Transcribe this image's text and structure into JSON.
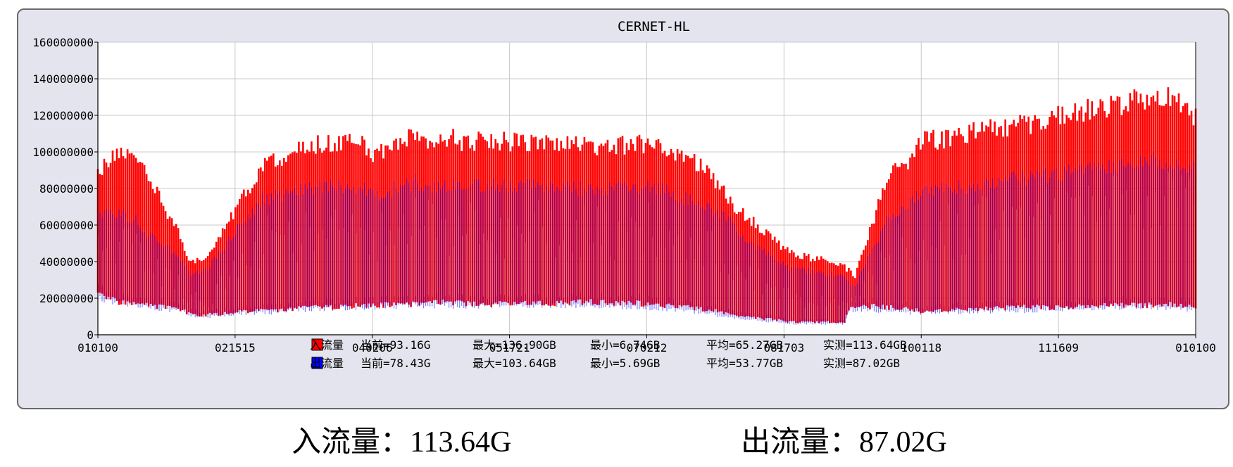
{
  "captions": {
    "in_text": "入流量：113.64G",
    "out_text": "出流量：87.02G"
  },
  "legend": [
    {
      "name": "入流量",
      "color": "#ff0000",
      "current": "当前=93.16G",
      "max": "最大=136.90GB",
      "min": "最小=6.74GB",
      "avg": "平均=65.27GB",
      "measured": "实测=113.64GB"
    },
    {
      "name": "出流量",
      "color": "#0000ff",
      "current": "当前=78.43G",
      "max": "最大=103.64GB",
      "min": "最小=5.69GB",
      "avg": "平均=53.77GB",
      "measured": "实测=87.02GB"
    }
  ],
  "chart_data": {
    "type": "area",
    "title": "CERNET-HL",
    "xlabel": "",
    "ylabel": "",
    "ylim": [
      0,
      160000000
    ],
    "y_ticks": [
      0,
      20000000,
      40000000,
      60000000,
      80000000,
      100000000,
      120000000,
      140000000,
      160000000
    ],
    "y_tick_labels": [
      "0",
      "20000000",
      "40000000",
      "60000000",
      "80000000",
      "100000000",
      "120000000",
      "140000000",
      "160000000"
    ],
    "x_tick_labels": [
      "010100",
      "021515",
      "040206",
      "051721",
      "070212",
      "081703",
      "100118",
      "111609",
      "010100"
    ],
    "grid": true,
    "series": [
      {
        "name": "入流量",
        "color": "#ff0000",
        "envelope_x": [
          0,
          0.02,
          0.035,
          0.045,
          0.06,
          0.075,
          0.085,
          0.1,
          0.12,
          0.15,
          0.2,
          0.24,
          0.25,
          0.29,
          0.3,
          0.32,
          0.33,
          0.35,
          0.4,
          0.45,
          0.5,
          0.52,
          0.55,
          0.57,
          0.58,
          0.6,
          0.62,
          0.63,
          0.66,
          0.68,
          0.685,
          0.69,
          0.72,
          0.735,
          0.75,
          0.77,
          0.8,
          0.84,
          0.87,
          0.9,
          0.92,
          0.94,
          0.96,
          0.975,
          0.99,
          1.0
        ],
        "peak": [
          92,
          103,
          98,
          92,
          72,
          56,
          40,
          45,
          65,
          95,
          108,
          108,
          102,
          112,
          110,
          112,
          108,
          110,
          108,
          106,
          108,
          104,
          95,
          82,
          72,
          62,
          52,
          46,
          42,
          38,
          36,
          33,
          90,
          95,
          110,
          110,
          115,
          118,
          122,
          127,
          128,
          132,
          133,
          134,
          128,
          122
        ],
        "trough": [
          22,
          18,
          17,
          16,
          15,
          14,
          11,
          11,
          12,
          13,
          15,
          16,
          16,
          17,
          18,
          18,
          17,
          17,
          17,
          18,
          17,
          16,
          14,
          12,
          10,
          9,
          8,
          7,
          7,
          7,
          15,
          16,
          15,
          14,
          13,
          13,
          14,
          15,
          15,
          16,
          16,
          16,
          16,
          17,
          15,
          16
        ],
        "mid": [
          75,
          70,
          68,
          60,
          48,
          38,
          26,
          28,
          42,
          72,
          82,
          82,
          78,
          85,
          84,
          86,
          80,
          83,
          82,
          80,
          82,
          78,
          72,
          62,
          52,
          42,
          34,
          30,
          28,
          26,
          25,
          24,
          68,
          72,
          80,
          82,
          85,
          88,
          92,
          96,
          97,
          100,
          102,
          102,
          98,
          95
        ]
      },
      {
        "name": "出流量",
        "color": "#0000ff",
        "envelope_x": [
          0,
          0.02,
          0.035,
          0.045,
          0.06,
          0.075,
          0.085,
          0.1,
          0.12,
          0.15,
          0.2,
          0.24,
          0.25,
          0.29,
          0.3,
          0.32,
          0.33,
          0.35,
          0.4,
          0.45,
          0.5,
          0.52,
          0.55,
          0.57,
          0.58,
          0.6,
          0.62,
          0.63,
          0.66,
          0.68,
          0.685,
          0.69,
          0.72,
          0.735,
          0.75,
          0.77,
          0.8,
          0.84,
          0.87,
          0.9,
          0.92,
          0.94,
          0.96,
          0.975,
          0.99,
          1.0
        ],
        "peak": [
          70,
          70,
          66,
          58,
          52,
          44,
          35,
          38,
          55,
          78,
          85,
          85,
          80,
          88,
          86,
          87,
          84,
          86,
          86,
          84,
          86,
          82,
          75,
          70,
          62,
          50,
          42,
          38,
          36,
          33,
          30,
          28,
          68,
          72,
          82,
          84,
          86,
          90,
          92,
          96,
          97,
          98,
          100,
          100,
          98,
          96
        ],
        "trough": [
          20,
          17,
          16,
          15,
          14,
          13,
          10,
          10,
          11,
          12,
          14,
          15,
          15,
          16,
          16,
          16,
          15,
          16,
          16,
          16,
          15,
          14,
          12,
          10,
          9,
          8,
          7,
          6,
          6,
          6,
          13,
          14,
          13,
          12,
          12,
          12,
          13,
          13,
          14,
          14,
          15,
          15,
          15,
          15,
          14,
          14
        ]
      }
    ],
    "units_note": ""
  }
}
